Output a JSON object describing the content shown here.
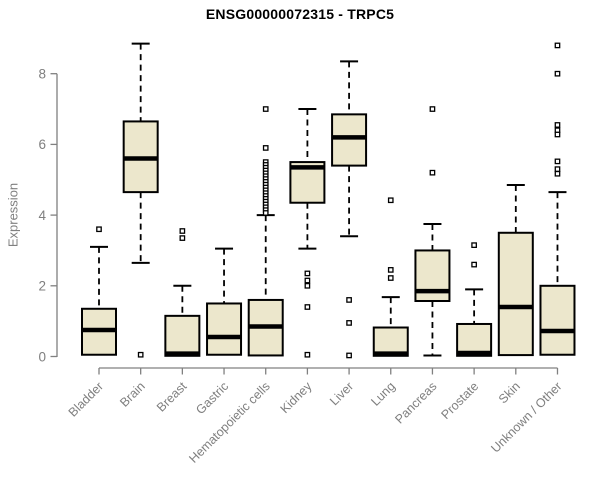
{
  "title": "ENSG00000072315 - TRPC5",
  "colors": {
    "background": "#ffffff",
    "box_fill": "#ECE7CC",
    "box_stroke": "#000000",
    "median_stroke": "#000000",
    "outlier_fill": "#ffffff",
    "axis": "#808080",
    "tick_label": "#7f7f7f",
    "title_color": "#000000"
  },
  "chart_data": {
    "type": "box",
    "title": "ENSG00000072315 - TRPC5",
    "xlabel": "",
    "ylabel": "Expression",
    "ylim": [
      0,
      9
    ],
    "yticks": [
      0,
      2,
      4,
      6,
      8
    ],
    "grid": false,
    "legend": "none",
    "categories": [
      "Bladder",
      "Brain",
      "Breast",
      "Gastric",
      "Hematopoietic cells",
      "Kidney",
      "Liver",
      "Lung",
      "Pancreas",
      "Prostate",
      "Skin",
      "Unknown / Other"
    ],
    "series": [
      {
        "name": "Bladder",
        "low": 0.05,
        "q1": 0.05,
        "median": 0.75,
        "q3": 1.35,
        "high": 3.1,
        "outliers": [
          3.6
        ]
      },
      {
        "name": "Brain",
        "low": 2.65,
        "q1": 4.65,
        "median": 5.6,
        "q3": 6.65,
        "high": 8.85,
        "outliers": [
          0.05
        ]
      },
      {
        "name": "Breast",
        "low": 0.02,
        "q1": 0.02,
        "median": 0.08,
        "q3": 1.15,
        "high": 2.0,
        "outliers": [
          3.55,
          3.35
        ]
      },
      {
        "name": "Gastric",
        "low": 0.05,
        "q1": 0.05,
        "median": 0.55,
        "q3": 1.5,
        "high": 3.05,
        "outliers": []
      },
      {
        "name": "Hematopoietic cells",
        "low": 0.03,
        "q1": 0.03,
        "median": 0.85,
        "q3": 1.6,
        "high": 4.0,
        "outliers": [
          7.0,
          5.9,
          5.5,
          5.42,
          5.34,
          5.26,
          5.18,
          5.1,
          5.02,
          4.94,
          4.86,
          4.78,
          4.7,
          4.62,
          4.54,
          4.46,
          4.38,
          4.3,
          4.22,
          4.14,
          4.06
        ]
      },
      {
        "name": "Kidney",
        "low": 3.05,
        "q1": 4.35,
        "median": 5.35,
        "q3": 5.5,
        "high": 7.0,
        "outliers": [
          2.35,
          2.15,
          2.0,
          1.4,
          0.05
        ]
      },
      {
        "name": "Liver",
        "low": 3.4,
        "q1": 5.4,
        "median": 6.2,
        "q3": 6.85,
        "high": 8.35,
        "outliers": [
          1.6,
          0.95,
          0.03
        ]
      },
      {
        "name": "Lung",
        "low": 0.02,
        "q1": 0.02,
        "median": 0.08,
        "q3": 0.82,
        "high": 1.68,
        "outliers": [
          4.42,
          2.45,
          2.22
        ]
      },
      {
        "name": "Pancreas",
        "low": 0.03,
        "q1": 1.57,
        "median": 1.85,
        "q3": 3.0,
        "high": 3.75,
        "outliers": [
          7.0,
          5.2
        ]
      },
      {
        "name": "Prostate",
        "low": 0.02,
        "q1": 0.02,
        "median": 0.1,
        "q3": 0.92,
        "high": 1.9,
        "outliers": [
          3.15,
          2.6
        ]
      },
      {
        "name": "Skin",
        "low": 0.04,
        "q1": 0.04,
        "median": 1.4,
        "q3": 3.5,
        "high": 4.85,
        "outliers": []
      },
      {
        "name": "Unknown / Other",
        "low": 0.05,
        "q1": 0.05,
        "median": 0.72,
        "q3": 2.0,
        "high": 4.65,
        "outliers": [
          8.8,
          8.0,
          6.55,
          6.4,
          6.28,
          5.52,
          5.3,
          5.17
        ]
      }
    ]
  }
}
